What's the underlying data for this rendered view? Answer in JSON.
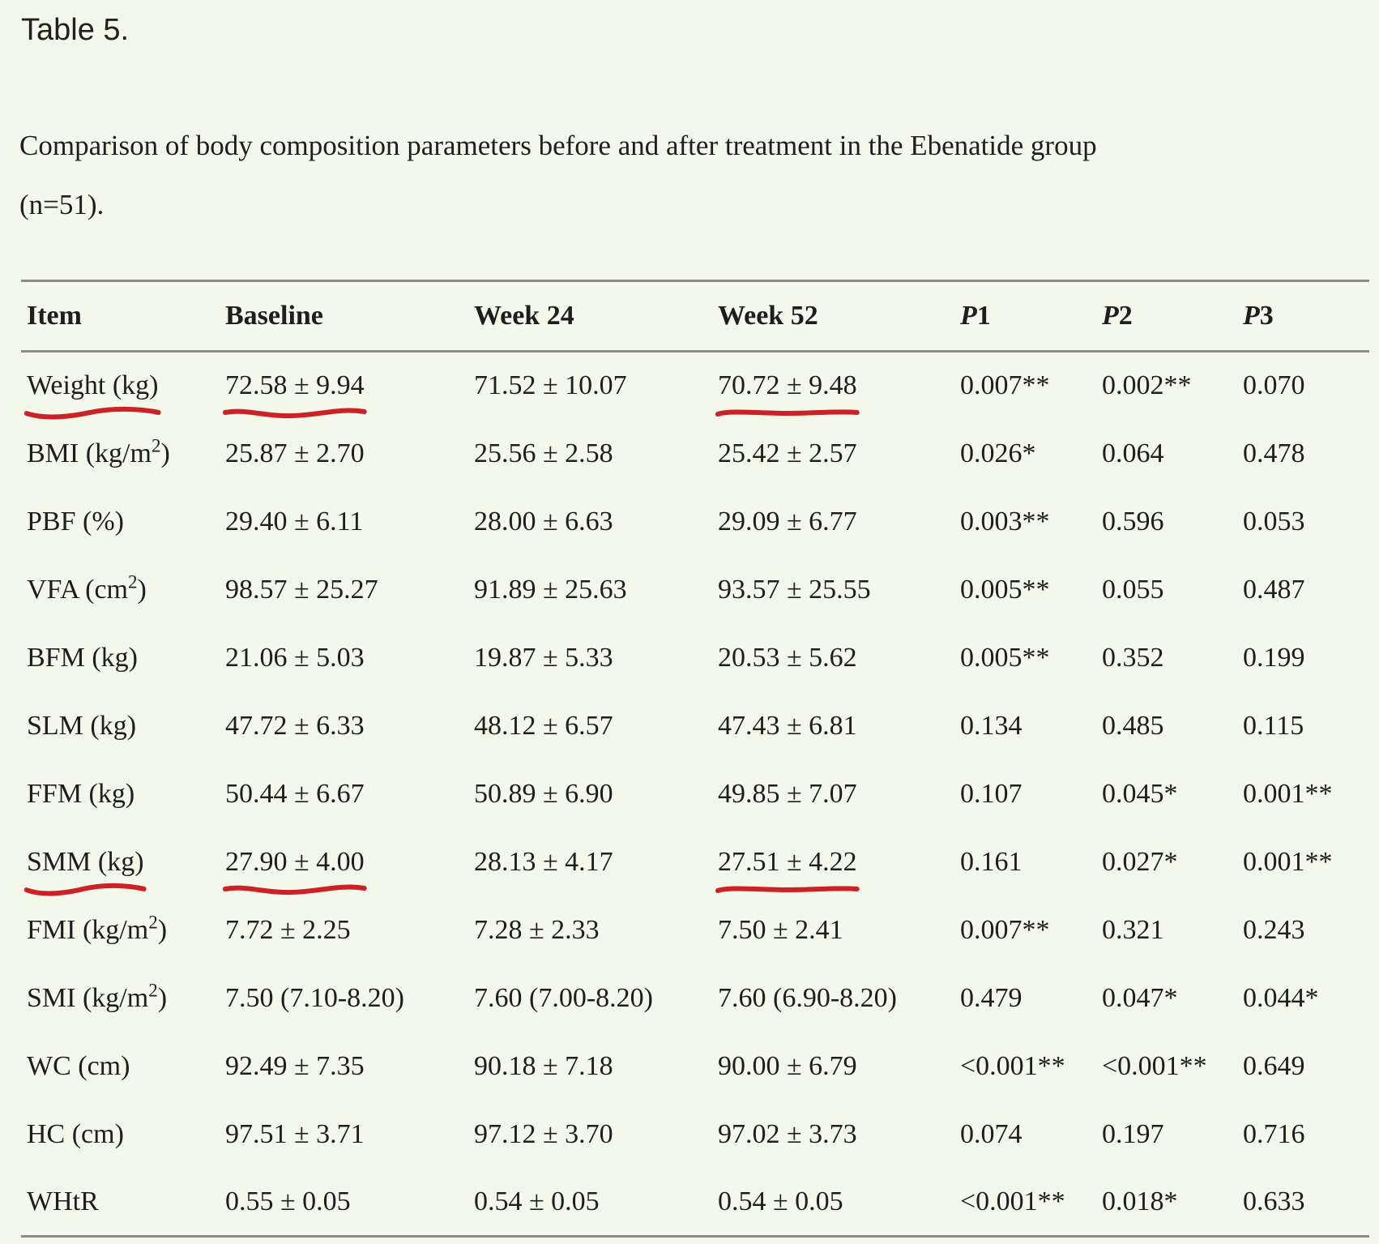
{
  "page": {
    "background": "#f3f8ea",
    "text_color": "#1e1e1c",
    "rule_color": "#8d8d86",
    "annotation_color": "#cb2127",
    "annotation_style": "hand-drawn red underline"
  },
  "title": "Table 5.",
  "caption": {
    "line1": "Comparison of body composition parameters before and after treatment in the Ebenatide group",
    "line2": "(n=51)."
  },
  "table": {
    "headers": [
      "Item",
      "Baseline",
      "Week 24",
      "Week 52",
      "P1",
      "P2",
      "P3"
    ],
    "rows": [
      {
        "item": "Weight (kg)",
        "baseline": "72.58 ± 9.94",
        "week24": "71.52 ± 10.07",
        "week52": "70.72 ± 9.48",
        "p1": "0.007**",
        "p2": "0.002**",
        "p3": "0.070",
        "underlined": [
          "item",
          "baseline",
          "week52"
        ]
      },
      {
        "item": "BMI (kg/m²)",
        "baseline": "25.87 ± 2.70",
        "week24": "25.56 ± 2.58",
        "week52": "25.42 ± 2.57",
        "p1": "0.026*",
        "p2": "0.064",
        "p3": "0.478",
        "underlined": []
      },
      {
        "item": "PBF (%)",
        "baseline": "29.40 ± 6.11",
        "week24": "28.00 ± 6.63",
        "week52": "29.09 ± 6.77",
        "p1": "0.003**",
        "p2": "0.596",
        "p3": "0.053",
        "underlined": []
      },
      {
        "item": "VFA (cm²)",
        "baseline": "98.57 ± 25.27",
        "week24": "91.89 ± 25.63",
        "week52": "93.57 ± 25.55",
        "p1": "0.005**",
        "p2": "0.055",
        "p3": "0.487",
        "underlined": []
      },
      {
        "item": "BFM (kg)",
        "baseline": "21.06 ± 5.03",
        "week24": "19.87 ± 5.33",
        "week52": "20.53 ± 5.62",
        "p1": "0.005**",
        "p2": "0.352",
        "p3": "0.199",
        "underlined": []
      },
      {
        "item": "SLM (kg)",
        "baseline": "47.72 ± 6.33",
        "week24": "48.12 ± 6.57",
        "week52": "47.43 ± 6.81",
        "p1": "0.134",
        "p2": "0.485",
        "p3": "0.115",
        "underlined": []
      },
      {
        "item": "FFM (kg)",
        "baseline": "50.44 ± 6.67",
        "week24": "50.89 ± 6.90",
        "week52": "49.85 ± 7.07",
        "p1": "0.107",
        "p2": "0.045*",
        "p3": "0.001**",
        "underlined": []
      },
      {
        "item": "SMM (kg)",
        "baseline": "27.90 ± 4.00",
        "week24": "28.13 ± 4.17",
        "week52": "27.51 ± 4.22",
        "p1": "0.161",
        "p2": "0.027*",
        "p3": "0.001**",
        "underlined": [
          "item",
          "baseline",
          "week52"
        ]
      },
      {
        "item": "FMI (kg/m²)",
        "baseline": "7.72 ± 2.25",
        "week24": "7.28 ± 2.33",
        "week52": "7.50 ± 2.41",
        "p1": "0.007**",
        "p2": "0.321",
        "p3": "0.243",
        "underlined": []
      },
      {
        "item": "SMI (kg/m²)",
        "baseline": "7.50 (7.10-8.20)",
        "week24": "7.60 (7.00-8.20)",
        "week52": "7.60 (6.90-8.20)",
        "p1": "0.479",
        "p2": "0.047*",
        "p3": "0.044*",
        "underlined": []
      },
      {
        "item": "WC (cm)",
        "baseline": "92.49 ± 7.35",
        "week24": "90.18 ± 7.18",
        "week52": "90.00 ± 6.79",
        "p1": "<0.001**",
        "p2": "<0.001**",
        "p3": "0.649",
        "underlined": []
      },
      {
        "item": "HC (cm)",
        "baseline": "97.51 ± 3.71",
        "week24": "97.12 ± 3.70",
        "week52": "97.02 ± 3.73",
        "p1": "0.074",
        "p2": "0.197",
        "p3": "0.716",
        "underlined": []
      },
      {
        "item": "WHtR",
        "baseline": "0.55 ± 0.05",
        "week24": "0.54 ± 0.05",
        "week52": "0.54 ± 0.05",
        "p1": "<0.001**",
        "p2": "0.018*",
        "p3": "0.633",
        "underlined": []
      }
    ]
  }
}
